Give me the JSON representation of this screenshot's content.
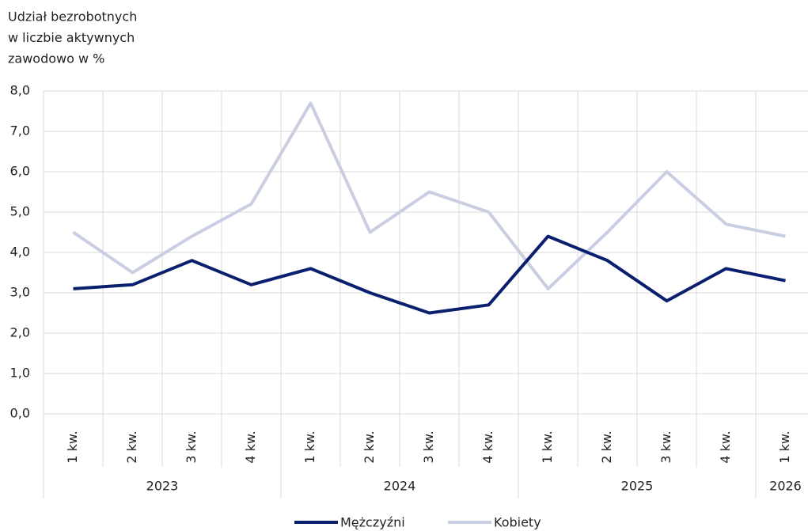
{
  "chart_data": {
    "type": "line",
    "title": [
      "Udział bezrobotnych",
      "w liczbie aktywnych",
      "zawodowo w %"
    ],
    "categories": [
      "1 kw.",
      "2 kw.",
      "3 kw.",
      "4 kw.",
      "1 kw.",
      "2 kw.",
      "3 kw.",
      "4 kw.",
      "1 kw.",
      "2 kw.",
      "3 kw.",
      "4 kw.",
      "1 kw."
    ],
    "years": [
      "2023",
      "2024",
      "2025",
      "2026"
    ],
    "series": [
      {
        "name": "Mężczyźni",
        "color": "#0b1f6f",
        "values": [
          3.1,
          3.2,
          3.8,
          3.2,
          3.6,
          3.0,
          2.5,
          2.7,
          4.4,
          3.8,
          2.8,
          3.6,
          3.3
        ]
      },
      {
        "name": "Kobiety",
        "color": "#c9cee2",
        "values": [
          4.5,
          3.5,
          4.4,
          5.2,
          7.7,
          4.5,
          5.5,
          5.0,
          3.1,
          4.5,
          6.0,
          4.7,
          4.4
        ]
      }
    ],
    "ylim": [
      0,
      8
    ],
    "yticks": [
      {
        "value": 0,
        "label": "0,0"
      },
      {
        "value": 1,
        "label": "1,0"
      },
      {
        "value": 2,
        "label": "2,0"
      },
      {
        "value": 3,
        "label": "3,0"
      },
      {
        "value": 4,
        "label": "4,0"
      },
      {
        "value": 5,
        "label": "5,0"
      },
      {
        "value": 6,
        "label": "6,0"
      },
      {
        "value": 7,
        "label": "7,0"
      },
      {
        "value": 8,
        "label": "8,0"
      }
    ],
    "grid": true,
    "legend": "bottom"
  }
}
